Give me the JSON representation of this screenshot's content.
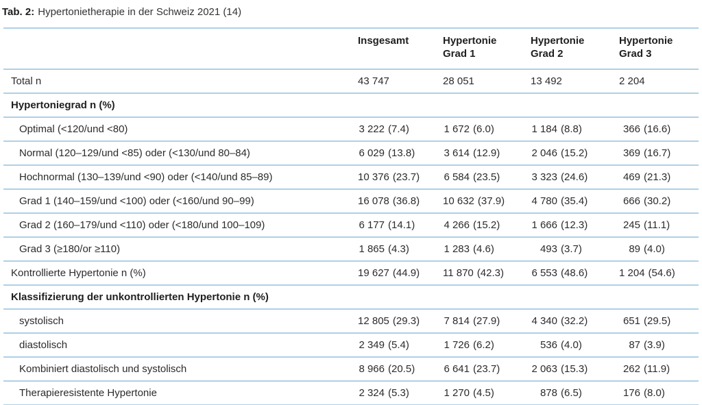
{
  "title": {
    "label": "Tab. 2:",
    "text": "Hypertonietherapie in der Schweiz 2021 (14)"
  },
  "table": {
    "columns": [
      "",
      "Insgesamt",
      "Hypertonie Grad 1",
      "Hypertonie Grad 2",
      "Hypertonie Grad 3"
    ],
    "rows": [
      {
        "label": "Total n",
        "section": false,
        "indent": false,
        "values": [
          "43 747",
          "28 051",
          "13 492",
          "2 204"
        ]
      },
      {
        "label": "Hypertoniegrad n (%)",
        "section": true,
        "indent": false,
        "values": []
      },
      {
        "label": "Optimal (<120/und <80)",
        "section": false,
        "indent": true,
        "values": [
          "3 222 (7.4)",
          "1 672 (6.0)",
          "1 184 (8.8)",
          "366 (16.6)"
        ]
      },
      {
        "label": "Normal (120–129/und <85) oder (<130/und 80–84)",
        "section": false,
        "indent": true,
        "values": [
          "6 029 (13.8)",
          "3 614 (12.9)",
          "2 046 (15.2)",
          "369 (16.7)"
        ]
      },
      {
        "label": "Hochnormal (130–139/und <90) oder (<140/und 85–89)",
        "section": false,
        "indent": true,
        "values": [
          "10 376 (23.7)",
          "6 584 (23.5)",
          "3 323 (24.6)",
          "469 (21.3)"
        ]
      },
      {
        "label": "Grad 1 (140–159/und <100) oder (<160/und 90–99)",
        "section": false,
        "indent": true,
        "values": [
          "16 078 (36.8)",
          "10 632 (37.9)",
          "4 780 (35.4)",
          "666 (30.2)"
        ]
      },
      {
        "label": "Grad 2 (160–179/und <110) oder (<180/und 100–109)",
        "section": false,
        "indent": true,
        "values": [
          "6 177 (14.1)",
          "4 266 (15.2)",
          "1 666 (12.3)",
          "245 (11.1)"
        ]
      },
      {
        "label": "Grad 3 (≥180/or ≥110)",
        "section": false,
        "indent": true,
        "values": [
          "1 865 (4.3)",
          "1 283 (4.6)",
          "493 (3.7)",
          "89 (4.0)"
        ]
      },
      {
        "label": "Kontrollierte Hypertonie n (%)",
        "section": false,
        "indent": false,
        "values": [
          "19 627 (44.9)",
          "11 870 (42.3)",
          "6 553 (48.6)",
          "1 204 (54.6)"
        ]
      },
      {
        "label": "Klassifizierung der unkontrollierten Hypertonie n (%)",
        "section": true,
        "indent": false,
        "values": []
      },
      {
        "label": "systolisch",
        "section": false,
        "indent": true,
        "values": [
          "12 805 (29.3)",
          "7 814 (27.9)",
          "4 340 (32.2)",
          "651 (29.5)"
        ]
      },
      {
        "label": "diastolisch",
        "section": false,
        "indent": true,
        "values": [
          "2 349 (5.4)",
          "1 726 (6.2)",
          "536 (4.0)",
          "87 (3.9)"
        ]
      },
      {
        "label": "Kombiniert diastolisch und systolisch",
        "section": false,
        "indent": true,
        "values": [
          "8 966 (20.5)",
          "6 641 (23.7)",
          "2 063 (15.3)",
          "262 (11.9)"
        ]
      },
      {
        "label": "Therapieresistente Hypertonie",
        "section": false,
        "indent": true,
        "values": [
          "2 324 (5.3)",
          "1 270 (4.5)",
          "878 (6.5)",
          "176 (8.0)"
        ]
      }
    ],
    "separator_color": "#aed0e6",
    "text_color": "#2b2b2b"
  }
}
